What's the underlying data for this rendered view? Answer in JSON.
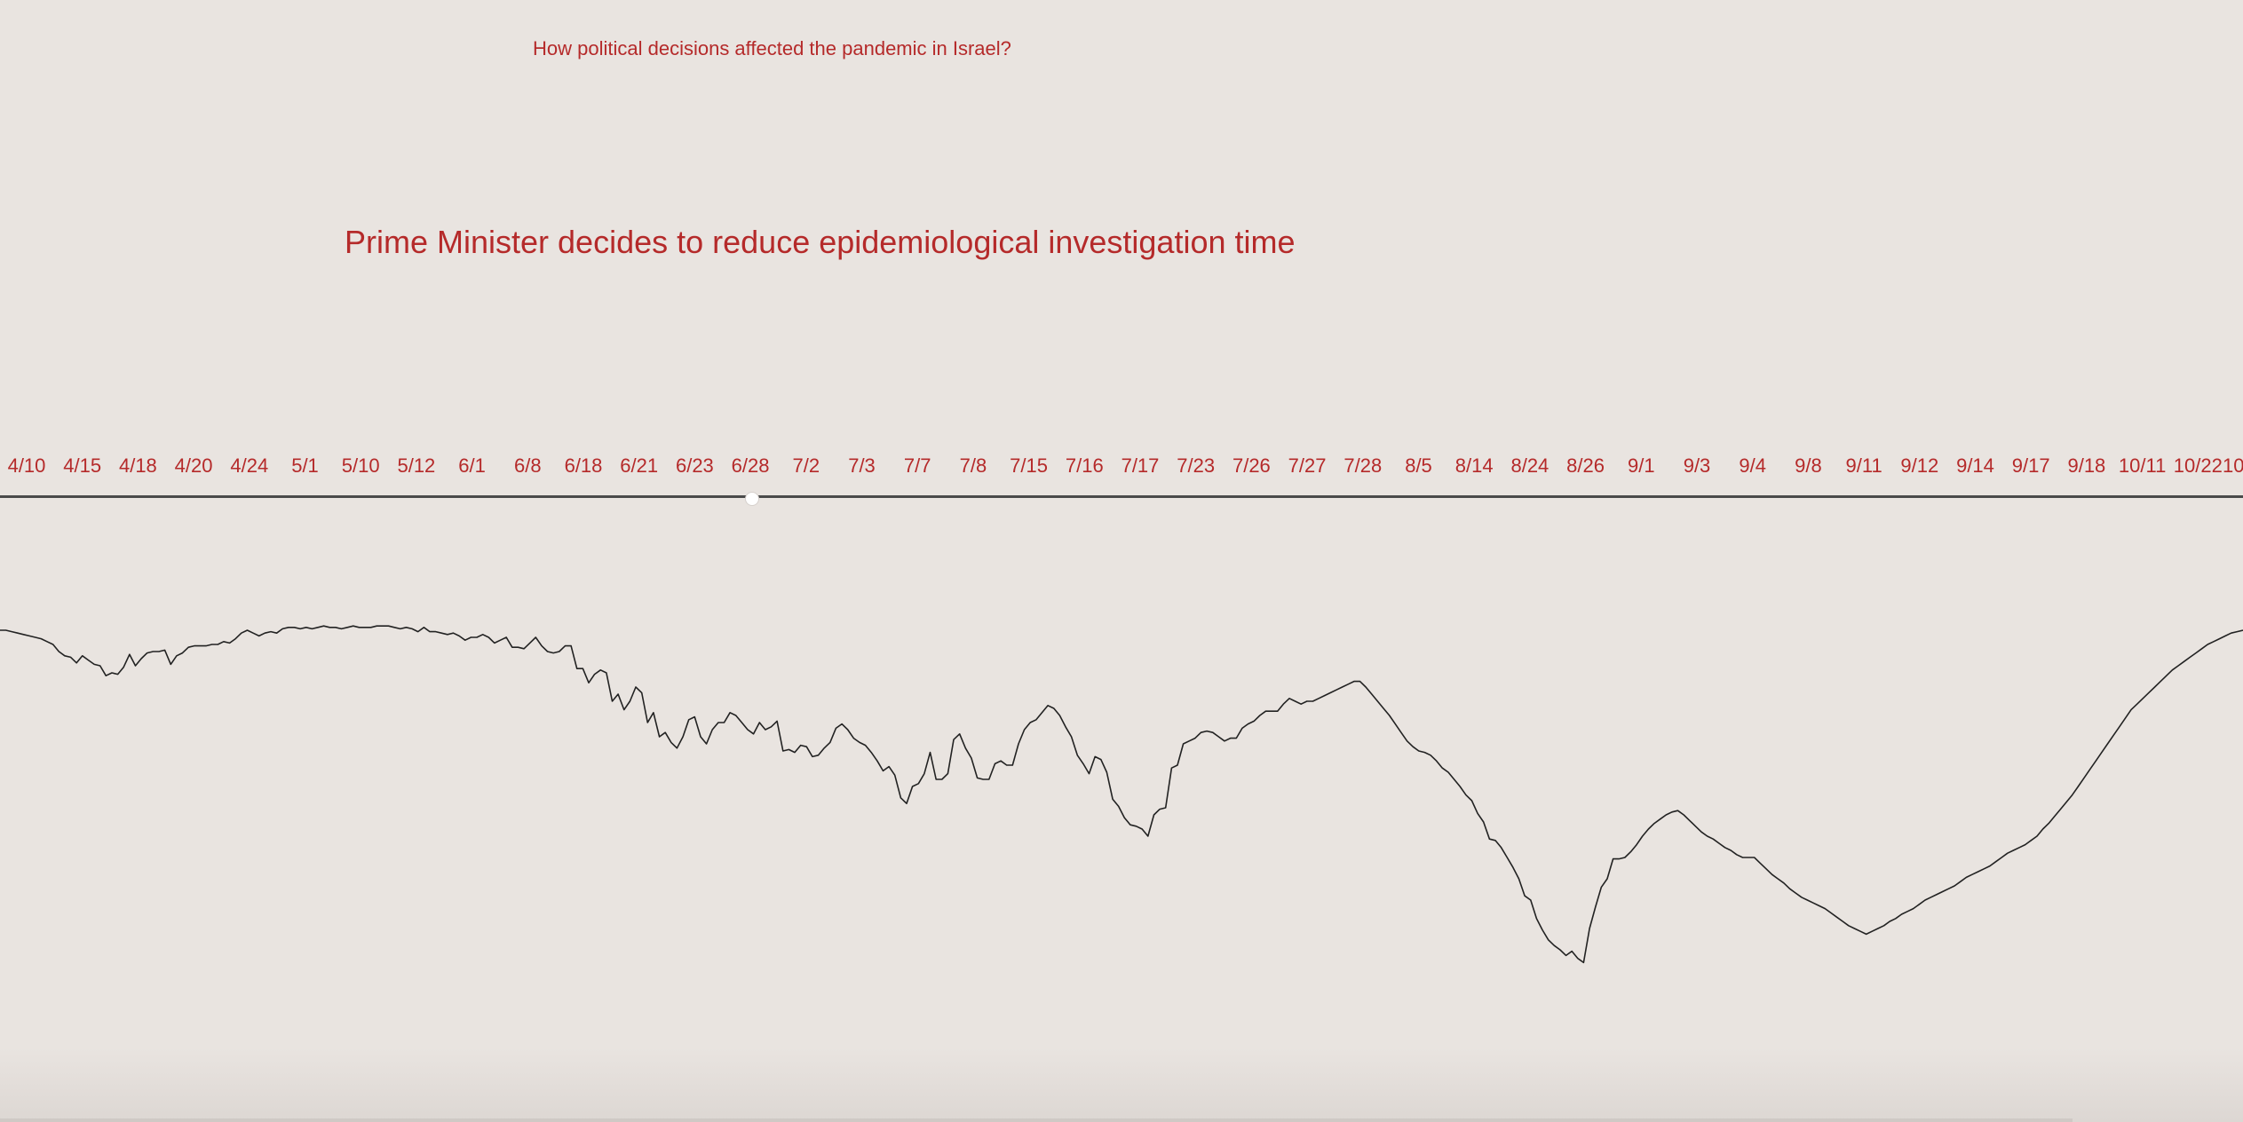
{
  "question": "How political decisions affected the pandemic in Israel?",
  "headline": "Prime Minister decides to reduce epidemiological investigation time",
  "colors": {
    "background": "#e9e4e0",
    "accent": "#b52a2a",
    "line": "#222222",
    "timeline_bar": "#4a4a4a"
  },
  "timeline": {
    "dates": [
      "4/10",
      "4/15",
      "4/18",
      "4/20",
      "4/24",
      "5/1",
      "5/10",
      "5/12",
      "6/1",
      "6/8",
      "6/18",
      "6/21",
      "6/23",
      "6/28",
      "7/2",
      "7/3",
      "7/7",
      "7/8",
      "7/15",
      "7/16",
      "7/17",
      "7/23",
      "7/26",
      "7/27",
      "7/28",
      "8/5",
      "8/14",
      "8/24",
      "8/26",
      "9/1",
      "9/3",
      "9/4",
      "9/8",
      "9/11",
      "9/12",
      "9/14",
      "9/17",
      "9/18",
      "10/11",
      "10/22",
      "10"
    ],
    "selected": "6/28"
  },
  "chart_data": {
    "type": "line",
    "title": "",
    "xlabel": "",
    "ylabel": "",
    "axes_visible": false,
    "grid": false,
    "ylim": [
      -340,
      20
    ],
    "series": [
      {
        "values": [
          0,
          0,
          -1,
          -2,
          -3,
          -4,
          -5,
          -6,
          -8,
          -10,
          -15,
          -18,
          -19,
          -23,
          -18,
          -21,
          -24,
          -25,
          -32,
          -30,
          -31,
          -26,
          -17,
          -25,
          -20,
          -16,
          -15,
          -15,
          -14,
          -24,
          -18,
          -16,
          -12,
          -11,
          -11,
          -11,
          -10,
          -10,
          -8,
          -9,
          -6,
          -2,
          0,
          -2,
          -4,
          -2,
          -1,
          -2,
          1,
          2,
          2,
          1,
          2,
          1,
          2,
          3,
          2,
          2,
          1,
          2,
          3,
          2,
          2,
          2,
          3,
          3,
          3,
          2,
          1,
          2,
          1,
          -1,
          2,
          -1,
          -1,
          -2,
          -3,
          -2,
          -4,
          -7,
          -5,
          -5,
          -3,
          -5,
          -9,
          -7,
          -5,
          -12,
          -12,
          -13,
          -9,
          -5,
          -11,
          -15,
          -16,
          -15,
          -11,
          -11,
          -27,
          -27,
          -37,
          -31,
          -28,
          -30,
          -50,
          -45,
          -56,
          -50,
          -40,
          -44,
          -65,
          -58,
          -75,
          -72,
          -79,
          -83,
          -75,
          -63,
          -61,
          -75,
          -80,
          -70,
          -65,
          -65,
          -58,
          -60,
          -65,
          -70,
          -73,
          -65,
          -70,
          -68,
          -64,
          -85,
          -84,
          -86,
          -81,
          -82,
          -89,
          -88,
          -83,
          -79,
          -69,
          -66,
          -70,
          -76,
          -79,
          -81,
          -86,
          -92,
          -99,
          -96,
          -102,
          -118,
          -122,
          -110,
          -108,
          -101,
          -86,
          -105,
          -105,
          -101,
          -77,
          -73,
          -83,
          -90,
          -104,
          -105,
          -105,
          -94,
          -92,
          -95,
          -95,
          -80,
          -70,
          -65,
          -63,
          -58,
          -53,
          -55,
          -60,
          -68,
          -75,
          -88,
          -94,
          -101,
          -89,
          -91,
          -100,
          -119,
          -124,
          -132,
          -137,
          -138,
          -140,
          -145,
          -130,
          -126,
          -125,
          -97,
          -95,
          -80,
          -78,
          -76,
          -72,
          -71,
          -72,
          -75,
          -78,
          -76,
          -76,
          -69,
          -66,
          -64,
          -60,
          -57,
          -57,
          -57,
          -52,
          -48,
          -50,
          -52,
          -50,
          -50,
          -48,
          -46,
          -44,
          -42,
          -40,
          -38,
          -36,
          -36,
          -40,
          -45,
          -50,
          -55,
          -60,
          -66,
          -72,
          -78,
          -82,
          -85,
          -86,
          -88,
          -92,
          -97,
          -100,
          -105,
          -110,
          -116,
          -120,
          -129,
          -135,
          -147,
          -148,
          -153,
          -160,
          -167,
          -175,
          -187,
          -190,
          -203,
          -211,
          -218,
          -222,
          -225,
          -229,
          -226,
          -231,
          -234,
          -210,
          -195,
          -181,
          -175,
          -161,
          -161,
          -160,
          -156,
          -151,
          -145,
          -140,
          -136,
          -133,
          -130,
          -128,
          -127,
          -130,
          -134,
          -138,
          -142,
          -145,
          -147,
          -150,
          -153,
          -155,
          -158,
          -160,
          -160,
          -160,
          -164,
          -168,
          -172,
          -175,
          -178,
          -182,
          -185,
          -188,
          -190,
          -192,
          -194,
          -196,
          -199,
          -202,
          -205,
          -208,
          -210,
          -212,
          -214,
          -212,
          -210,
          -208,
          -205,
          -203,
          -200,
          -198,
          -196,
          -193,
          -190,
          -188,
          -186,
          -184,
          -182,
          -180,
          -177,
          -174,
          -172,
          -170,
          -168,
          -166,
          -163,
          -160,
          -157,
          -155,
          -153,
          -151,
          -148,
          -145,
          -140,
          -136,
          -131,
          -126,
          -121,
          -116,
          -110,
          -104,
          -98,
          -92,
          -86,
          -80,
          -74,
          -68,
          -62,
          -56,
          -52,
          -48,
          -44,
          -40,
          -36,
          -32,
          -28,
          -25,
          -22,
          -19,
          -16,
          -13,
          -10,
          -8,
          -6,
          -4,
          -2,
          -1,
          0
        ]
      }
    ]
  }
}
